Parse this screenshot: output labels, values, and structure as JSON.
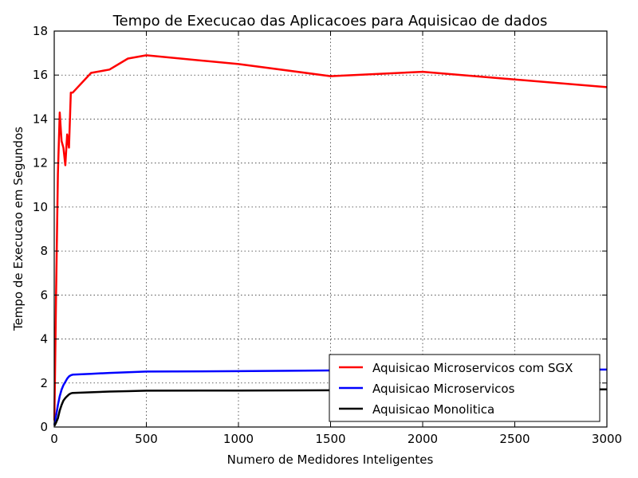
{
  "chart_data": {
    "type": "line",
    "title": "Tempo de Execucao das Aplicacoes para Aquisicao de dados",
    "xlabel": "Numero de Medidores Inteligentes",
    "ylabel": "Tempo de Execucao em Segundos",
    "xlim": [
      0,
      3000
    ],
    "ylim": [
      0,
      18
    ],
    "xticks": [
      0,
      500,
      1000,
      1500,
      2000,
      2500,
      3000
    ],
    "yticks": [
      0,
      2,
      4,
      6,
      8,
      10,
      12,
      14,
      16,
      18
    ],
    "grid": true,
    "legend_position": "lower-right",
    "series": [
      {
        "name": "Aquisicao Microservicos com SGX",
        "color": "#ff0000",
        "x": [
          1,
          10,
          20,
          30,
          40,
          50,
          60,
          70,
          80,
          90,
          100,
          200,
          300,
          400,
          500,
          1000,
          1500,
          2000,
          3000
        ],
        "y": [
          0.3,
          6.0,
          11.5,
          14.3,
          13.0,
          12.7,
          11.9,
          13.3,
          12.7,
          15.2,
          15.2,
          16.1,
          16.25,
          16.75,
          16.9,
          16.5,
          15.95,
          16.15,
          15.45
        ]
      },
      {
        "name": "Aquisicao Microservicos",
        "color": "#0000ff",
        "x": [
          1,
          10,
          20,
          30,
          40,
          50,
          60,
          70,
          80,
          90,
          100,
          200,
          300,
          400,
          500,
          1000,
          1500,
          2000,
          3000
        ],
        "y": [
          0.1,
          0.5,
          1.0,
          1.4,
          1.7,
          1.9,
          2.05,
          2.2,
          2.3,
          2.35,
          2.38,
          2.42,
          2.46,
          2.49,
          2.52,
          2.54,
          2.57,
          2.59,
          2.61
        ]
      },
      {
        "name": "Aquisicao Monolitica",
        "color": "#000000",
        "x": [
          1,
          10,
          20,
          30,
          40,
          50,
          60,
          70,
          80,
          90,
          100,
          200,
          300,
          400,
          500,
          1000,
          1500,
          2000,
          3000
        ],
        "y": [
          0.05,
          0.2,
          0.4,
          0.75,
          1.0,
          1.2,
          1.32,
          1.4,
          1.48,
          1.53,
          1.55,
          1.58,
          1.61,
          1.63,
          1.65,
          1.66,
          1.67,
          1.69,
          1.71
        ]
      }
    ]
  }
}
